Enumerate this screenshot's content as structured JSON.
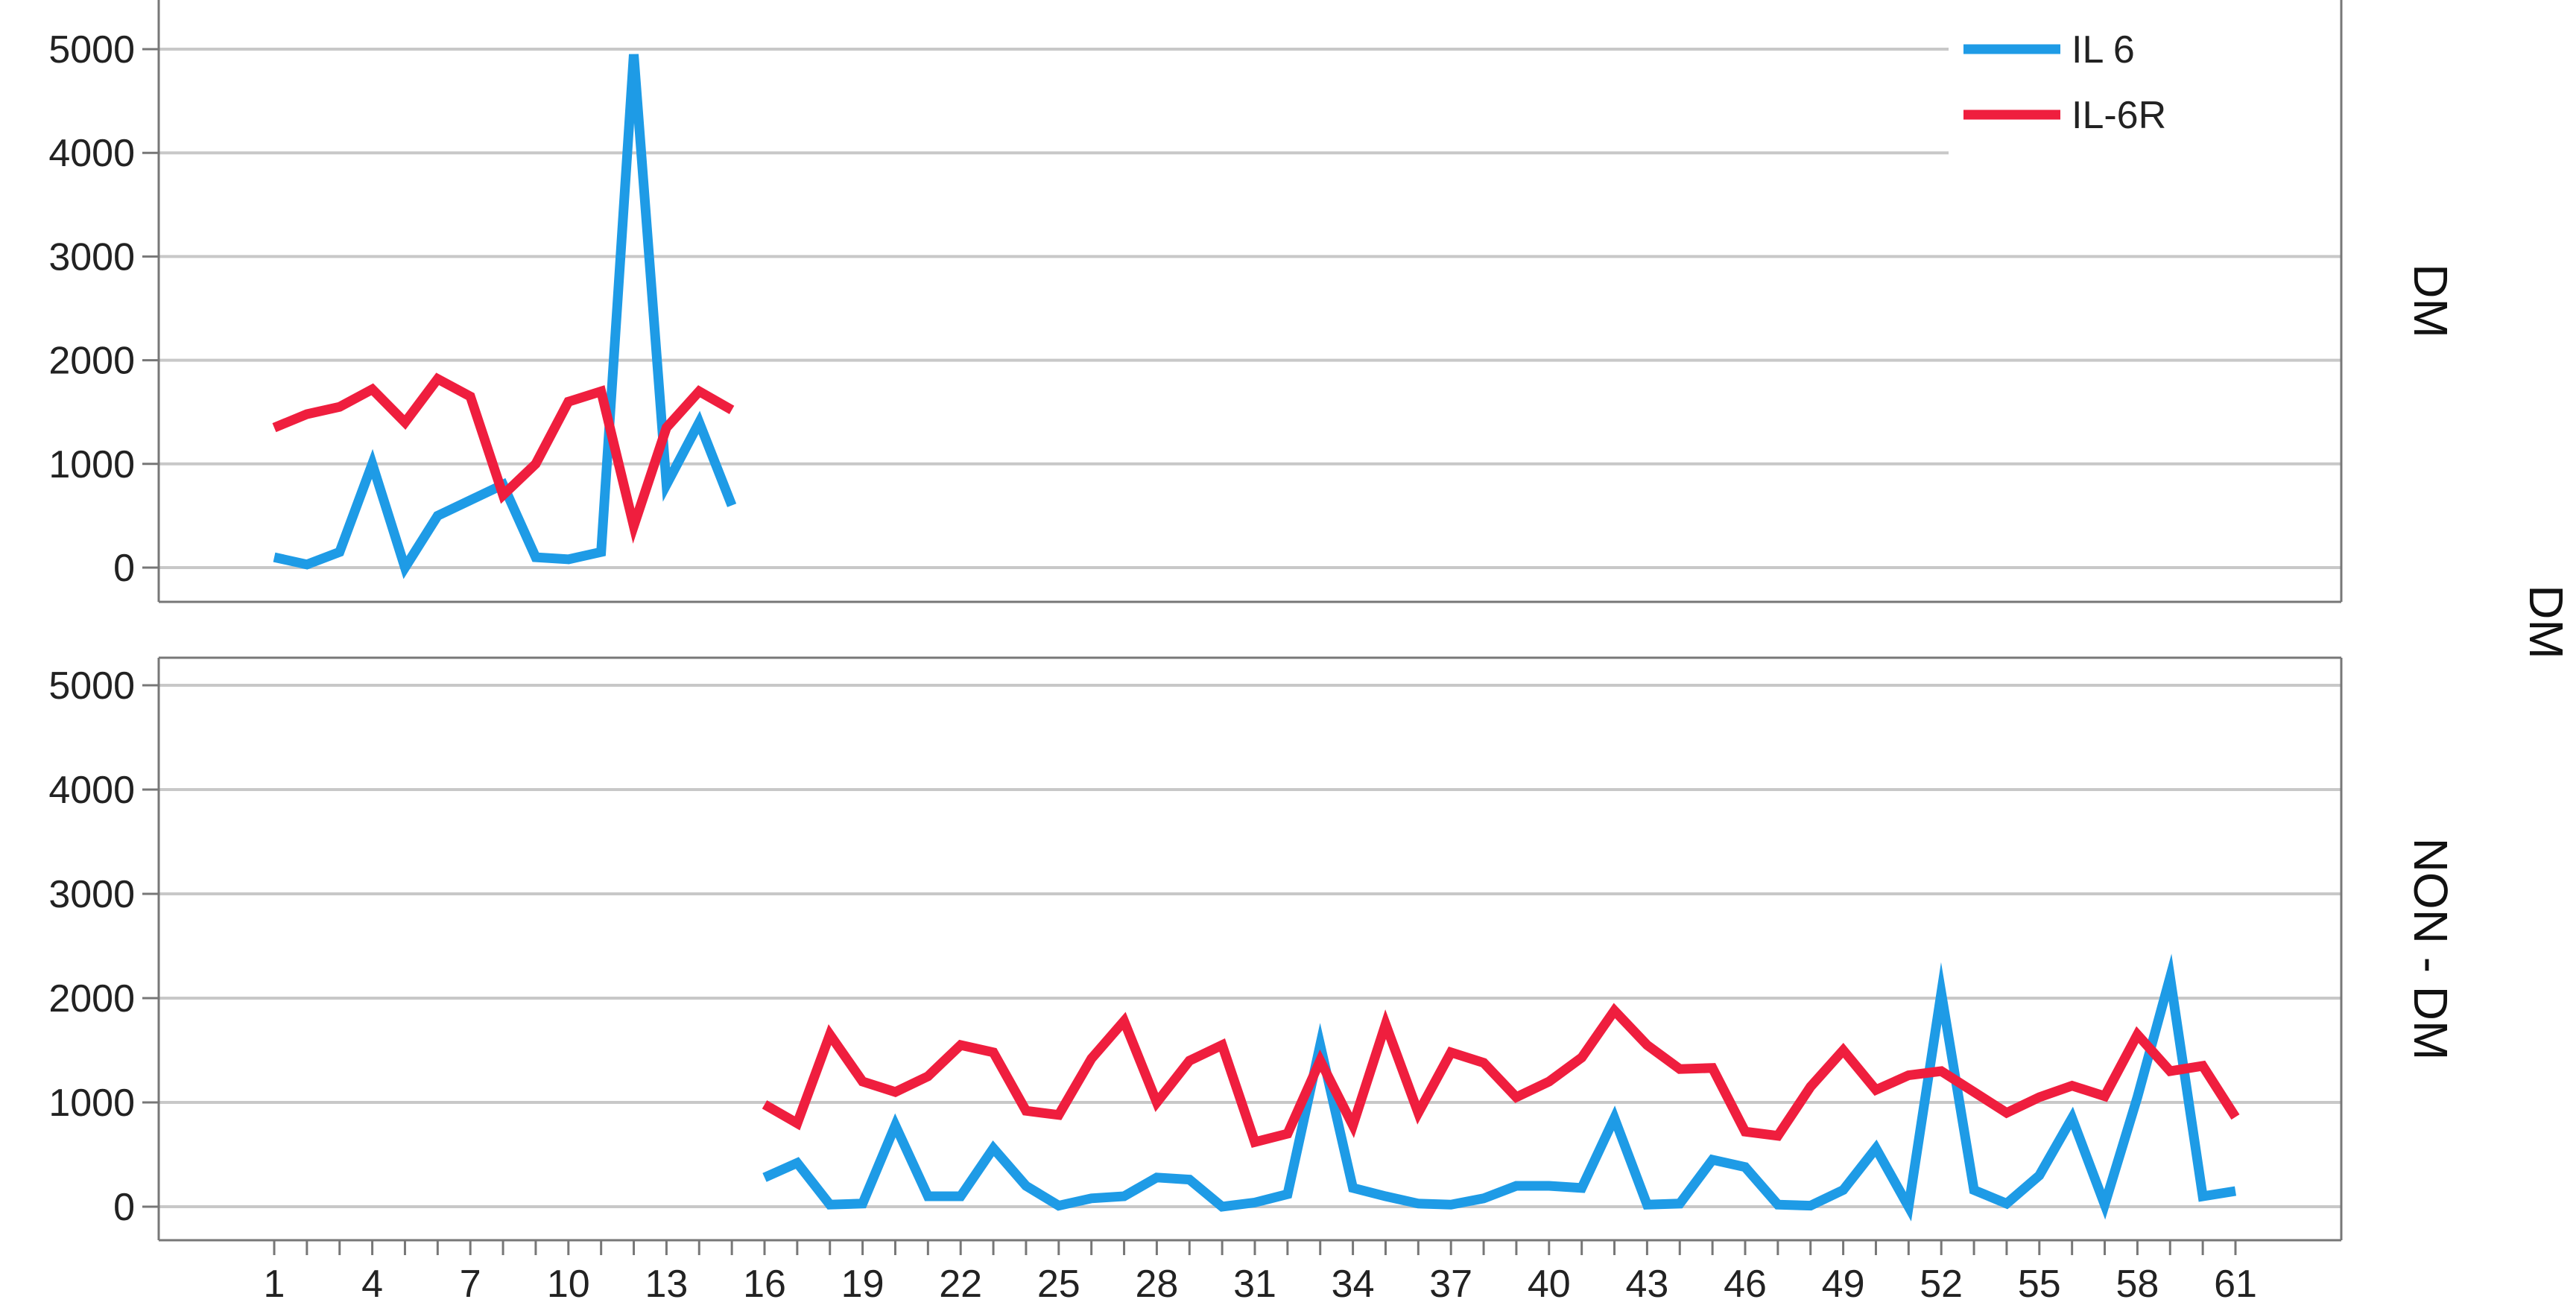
{
  "chart_data": {
    "type": "line",
    "outer_facet_label": "DM",
    "x": [
      1,
      2,
      3,
      4,
      5,
      6,
      7,
      8,
      9,
      10,
      11,
      12,
      13,
      14,
      15,
      16,
      17,
      18,
      19,
      20,
      21,
      22,
      23,
      24,
      25,
      26,
      27,
      28,
      29,
      30,
      31,
      32,
      33,
      34,
      35,
      36,
      37,
      38,
      39,
      40,
      41,
      42,
      43,
      44,
      45,
      46,
      47,
      48,
      49,
      50,
      51,
      52,
      53,
      54,
      55,
      56,
      57,
      58,
      59,
      60,
      61
    ],
    "x_tick_labels": [
      "1",
      "4",
      "7",
      "10",
      "13",
      "16",
      "19",
      "22",
      "25",
      "28",
      "31",
      "34",
      "37",
      "40",
      "43",
      "46",
      "49",
      "52",
      "55",
      "58",
      "61"
    ],
    "y_ticks": [
      "0",
      "1000",
      "2000",
      "3000",
      "4000",
      "5000"
    ],
    "ylim": [
      0,
      5000
    ],
    "grid": "horizontal",
    "legend_position": "top-right",
    "colors": {
      "IL 6": "#1E9BE6",
      "IL-6R": "#EF1E3E"
    },
    "panels": [
      {
        "label": "DM",
        "series": [
          {
            "name": "IL 6",
            "x_start": 1,
            "values": [
              100,
              30,
              150,
              1000,
              0,
              500,
              650,
              800,
              100,
              80,
              150,
              4950,
              800,
              1400,
              600
            ]
          },
          {
            "name": "IL-6R",
            "x_start": 1,
            "values": [
              1350,
              1480,
              1550,
              1720,
              1400,
              1820,
              1650,
              700,
              1000,
              1600,
              1700,
              400,
              1350,
              1700,
              1520
            ]
          }
        ]
      },
      {
        "label": "NON - DM",
        "series": [
          {
            "name": "IL 6",
            "x_start": 16,
            "values": [
              280,
              420,
              20,
              30,
              780,
              100,
              100,
              560,
              200,
              10,
              80,
              100,
              280,
              260,
              0,
              40,
              120,
              1550,
              180,
              100,
              30,
              20,
              80,
              200,
              200,
              180,
              850,
              20,
              30,
              450,
              380,
              20,
              10,
              160,
              560,
              0,
              2050,
              160,
              30,
              300,
              850,
              20,
              1050,
              2200,
              100,
              150
            ]
          },
          {
            "name": "IL-6R",
            "x_start": 16,
            "values": [
              980,
              800,
              1650,
              1200,
              1100,
              1250,
              1550,
              1480,
              920,
              880,
              1420,
              1780,
              1000,
              1400,
              1550,
              620,
              700,
              1400,
              780,
              1750,
              900,
              1480,
              1380,
              1050,
              1200,
              1430,
              1880,
              1550,
              1320,
              1330,
              720,
              680,
              1150,
              1500,
              1120,
              1260,
              1300,
              1100,
              900,
              1050,
              1160,
              1060,
              1650,
              1300,
              1350,
              860
            ]
          }
        ]
      }
    ]
  }
}
